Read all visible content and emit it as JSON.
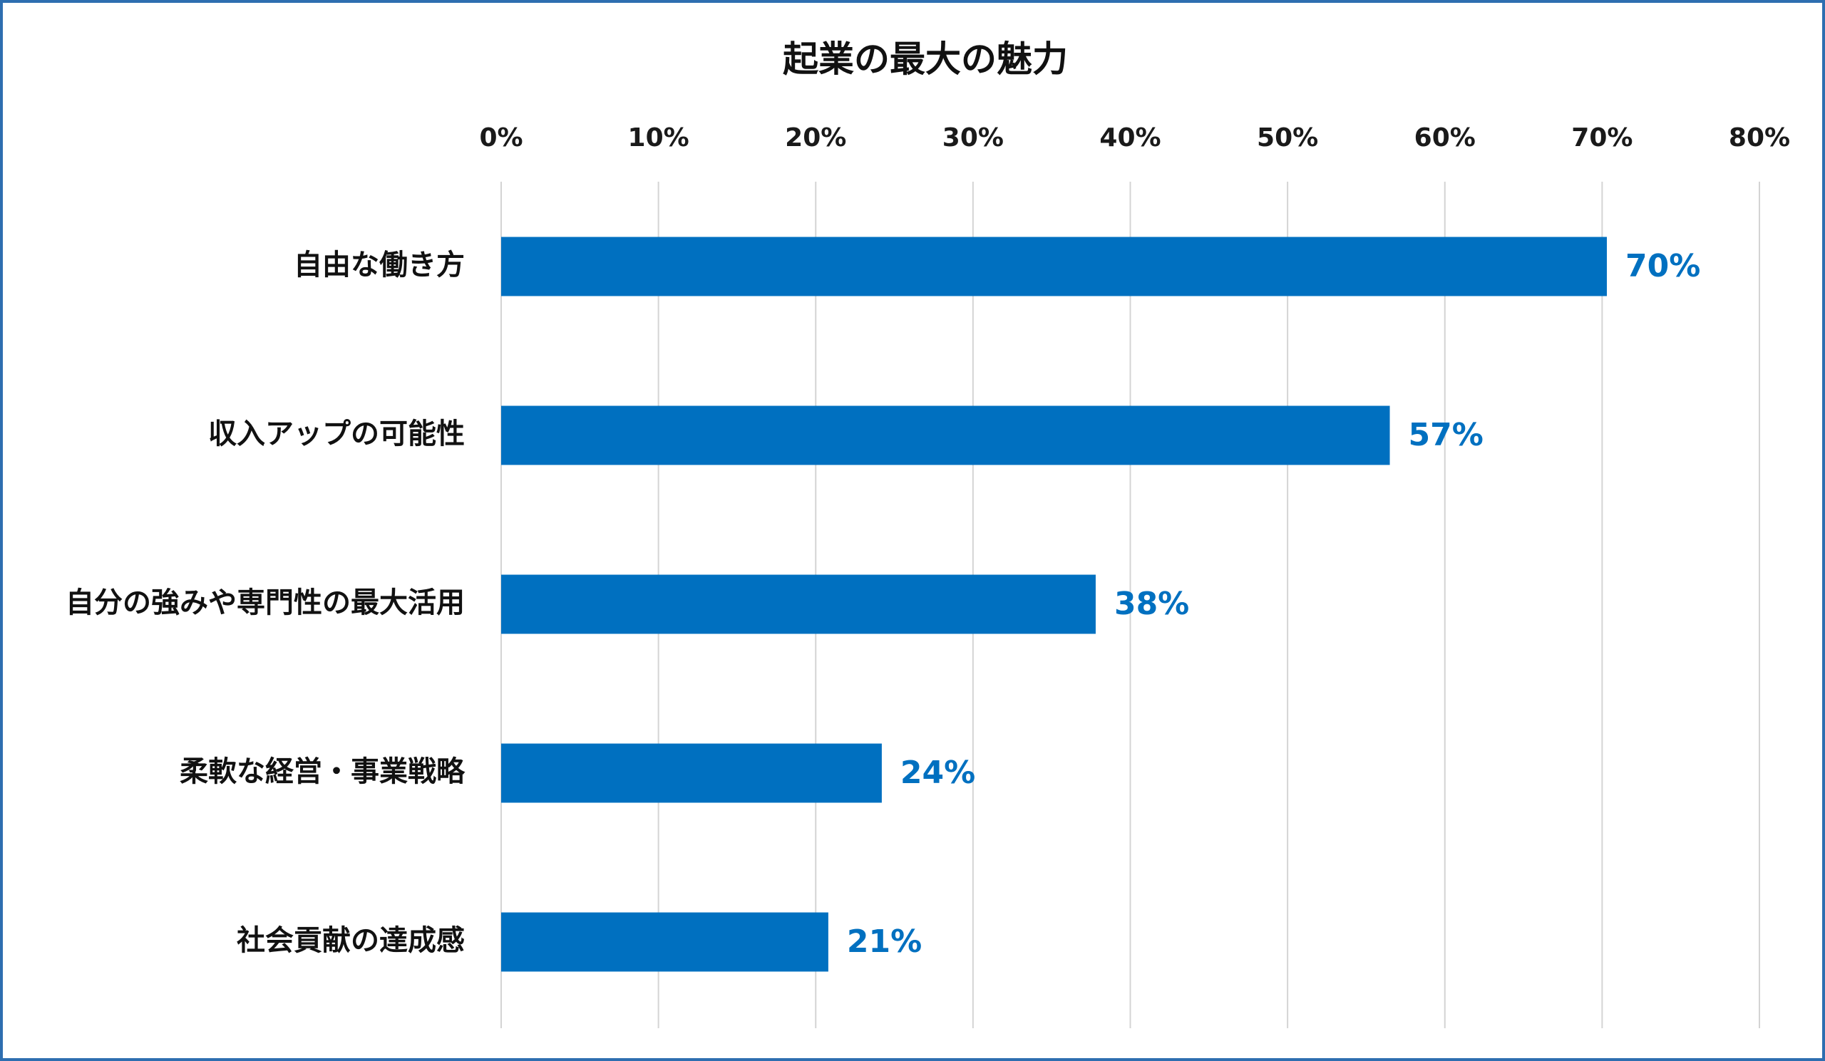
{
  "chart_data": {
    "type": "bar",
    "orientation": "horizontal",
    "title": "起業の最大の魅力",
    "categories": [
      "自由な働き方",
      "収入アップの可能性",
      "自分の強みや専門性の最大活用",
      "柔軟な経営・事業戦略",
      "社会貢献の達成感"
    ],
    "values": [
      70.3,
      56.5,
      37.8,
      24.2,
      20.8
    ],
    "data_labels": [
      "70%",
      "57%",
      "38%",
      "24%",
      "21%"
    ],
    "xlim": [
      0,
      80
    ],
    "x_ticks": [
      0,
      10,
      20,
      30,
      40,
      50,
      60,
      70,
      80
    ],
    "x_tick_labels": [
      "0%",
      "10%",
      "20%",
      "30%",
      "40%",
      "50%",
      "60%",
      "70%",
      "80%"
    ],
    "x_axis_position": "top",
    "xlabel": "",
    "ylabel": "",
    "grid": true,
    "legend": "none",
    "colors": {
      "bar": "#0070c0",
      "data_label": "#0070c0",
      "grid": "#d4d4d4",
      "border": "#2e6eb0"
    }
  }
}
